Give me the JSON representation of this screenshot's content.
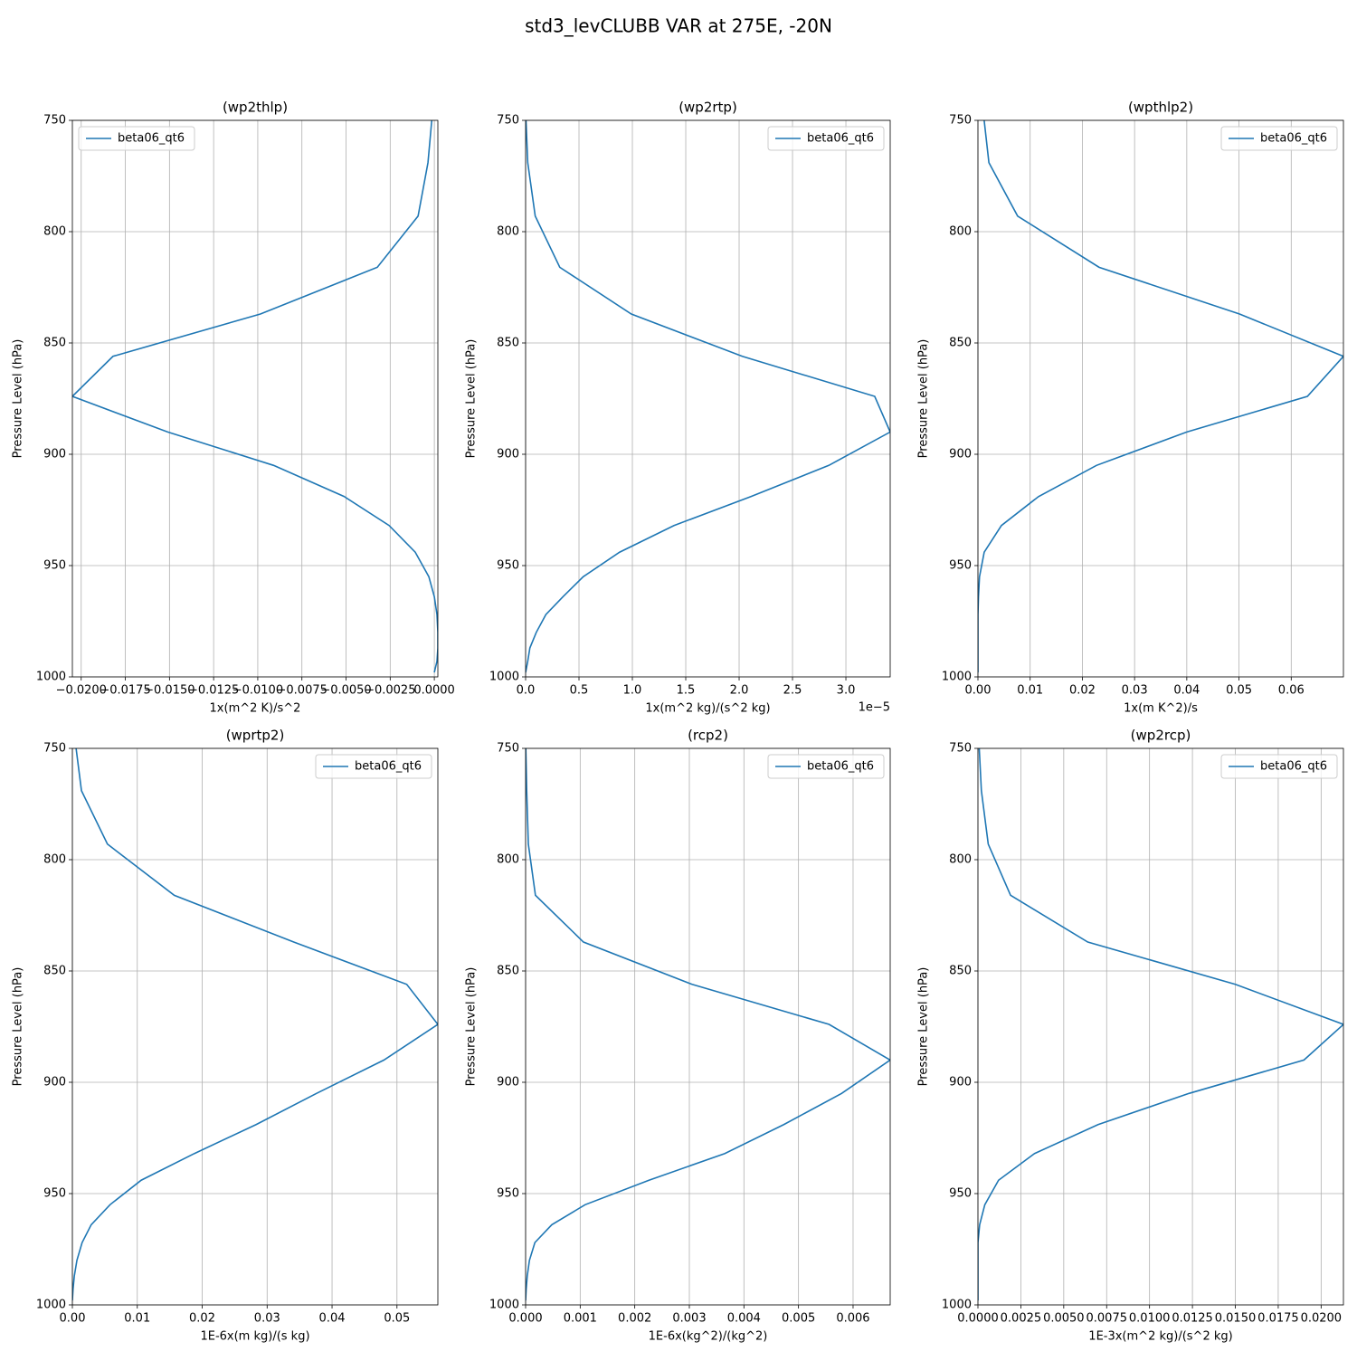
{
  "title": "std3_levCLUBB VAR at 275E, -20N",
  "chart_data": [
    {
      "type": "line",
      "title": "(wp2thlp)",
      "xlabel": "1x(m^2 K)/s^2",
      "ylabel": "Pressure Level (hPa)",
      "y": [
        746,
        769,
        793,
        816,
        837,
        856,
        874,
        890,
        905,
        919,
        932,
        944,
        955,
        964,
        972,
        980,
        987,
        993,
        998
      ],
      "series": [
        {
          "name": "beta06_qt6",
          "color": "#1f77b4",
          "values": [
            -0.0001,
            -0.00036,
            -0.00092,
            -0.00323,
            -0.00985,
            -0.0182,
            -0.0205,
            -0.0151,
            -0.0091,
            -0.0051,
            -0.00256,
            -0.00108,
            -0.00031,
            0,
            0.00015,
            0.0002,
            0.0002,
            0.00015,
            0
          ]
        }
      ],
      "xlim": [
        -0.0205,
        0.0002
      ],
      "ylim": [
        1000,
        750
      ],
      "xticks": [
        {
          "value": -0.02,
          "label": "−0.0200"
        },
        {
          "value": -0.0175,
          "label": "−0.0175"
        },
        {
          "value": -0.015,
          "label": "−0.0150"
        },
        {
          "value": -0.0125,
          "label": "−0.0125"
        },
        {
          "value": -0.01,
          "label": "−0.0100"
        },
        {
          "value": -0.0075,
          "label": "−0.0075"
        },
        {
          "value": -0.005,
          "label": "−0.0050"
        },
        {
          "value": -0.0025,
          "label": "−0.0025"
        },
        {
          "value": 0,
          "label": "0.0000"
        }
      ],
      "yticks": [
        750,
        800,
        850,
        900,
        950,
        1000
      ],
      "grid": true,
      "legend": "upper left"
    },
    {
      "type": "line",
      "title": "(wp2rtp)",
      "xlabel": "1x(m^2 kg)/(s^2 kg)",
      "ylabel": "Pressure Level (hPa)",
      "x_offset_label": "1e−5",
      "y": [
        746,
        769,
        793,
        816,
        837,
        856,
        874,
        890,
        905,
        919,
        932,
        944,
        955,
        964,
        972,
        980,
        987,
        993,
        998
      ],
      "series": [
        {
          "name": "beta06_qt6",
          "color": "#1f77b4",
          "values": [
            0,
            0.02,
            0.09,
            0.32,
            0.99,
            2.03,
            3.27,
            3.415,
            2.84,
            2.11,
            1.39,
            0.88,
            0.54,
            0.35,
            0.19,
            0.1,
            0.04,
            0.02,
            0
          ]
        }
      ],
      "xlim": [
        0,
        3.415
      ],
      "ylim": [
        1000,
        750
      ],
      "xticks": [
        {
          "value": 0,
          "label": "0.0"
        },
        0.5,
        {
          "value": 1,
          "label": "1.0"
        },
        1.5,
        {
          "value": 2,
          "label": "2.0"
        },
        2.5,
        {
          "value": 3,
          "label": "3.0"
        }
      ],
      "yticks": [
        750,
        800,
        850,
        900,
        950,
        1000
      ],
      "grid": true,
      "legend": "upper right"
    },
    {
      "type": "line",
      "title": "(wpthlp2)",
      "xlabel": "1x(m K^2)/s",
      "ylabel": "Pressure Level (hPa)",
      "y": [
        746,
        769,
        793,
        816,
        837,
        856,
        874,
        890,
        905,
        919,
        932,
        944,
        955,
        964,
        972,
        980,
        987,
        993,
        998
      ],
      "series": [
        {
          "name": "beta06_qt6",
          "color": "#1f77b4",
          "values": [
            0.001,
            0.0021,
            0.0076,
            0.0232,
            0.0501,
            0.07,
            0.0631,
            0.04,
            0.0227,
            0.0116,
            0.0045,
            0.0012,
            0.0003,
            0.0001,
            0,
            0,
            0,
            0,
            0
          ]
        }
      ],
      "xlim": [
        0,
        0.07
      ],
      "ylim": [
        1000,
        750
      ],
      "xticks": [
        {
          "value": 0,
          "label": "0.00"
        },
        0.01,
        0.02,
        0.03,
        0.04,
        0.05,
        0.06
      ],
      "yticks": [
        750,
        800,
        850,
        900,
        950,
        1000
      ],
      "grid": true,
      "legend": "upper right"
    },
    {
      "type": "line",
      "title": "(wprtp2)",
      "xlabel": "1E-6x(m kg)/(s kg)",
      "ylabel": "Pressure Level (hPa)",
      "y": [
        746,
        769,
        793,
        816,
        837,
        856,
        874,
        890,
        905,
        919,
        932,
        944,
        955,
        964,
        972,
        980,
        987,
        993,
        998
      ],
      "series": [
        {
          "name": "beta06_qt6",
          "color": "#1f77b4",
          "values": [
            0.0004,
            0.0014,
            0.0054,
            0.0157,
            0.0341,
            0.0515,
            0.0563,
            0.048,
            0.0376,
            0.0283,
            0.0188,
            0.0106,
            0.0058,
            0.0029,
            0.0015,
            0.0007,
            0.0003,
            0.0001,
            0
          ]
        }
      ],
      "xlim": [
        0,
        0.0563
      ],
      "ylim": [
        1000,
        750
      ],
      "xticks": [
        {
          "value": 0,
          "label": "0.00"
        },
        0.01,
        0.02,
        0.03,
        0.04,
        0.05
      ],
      "yticks": [
        750,
        800,
        850,
        900,
        950,
        1000
      ],
      "grid": true,
      "legend": "upper right"
    },
    {
      "type": "line",
      "title": "(rcp2)",
      "xlabel": "1E-6x(kg^2)/(kg^2)",
      "ylabel": "Pressure Level (hPa)",
      "y": [
        746,
        769,
        793,
        816,
        837,
        856,
        874,
        890,
        905,
        919,
        932,
        944,
        955,
        964,
        972,
        980,
        987,
        993,
        998
      ],
      "series": [
        {
          "name": "beta06_qt6",
          "color": "#1f77b4",
          "values": [
            0,
            2e-05,
            5e-05,
            0.00018,
            0.00106,
            0.00305,
            0.00556,
            0.00668,
            0.00579,
            0.00473,
            0.00365,
            0.00226,
            0.00109,
            0.00048,
            0.00017,
            7e-05,
            3e-05,
            1e-05,
            0
          ]
        }
      ],
      "xlim": [
        0,
        0.00668
      ],
      "ylim": [
        1000,
        750
      ],
      "xticks": [
        {
          "value": 0,
          "label": "0.000"
        },
        0.001,
        0.002,
        0.003,
        0.004,
        0.005,
        0.006
      ],
      "yticks": [
        750,
        800,
        850,
        900,
        950,
        1000
      ],
      "grid": true,
      "legend": "upper right"
    },
    {
      "type": "line",
      "title": "(wp2rcp)",
      "xlabel": "1E-3x(m^2 kg)/(s^2 kg)",
      "ylabel": "Pressure Level (hPa)",
      "y": [
        746,
        769,
        793,
        816,
        837,
        856,
        874,
        890,
        905,
        919,
        932,
        944,
        955,
        964,
        972,
        980,
        987,
        993,
        998
      ],
      "series": [
        {
          "name": "beta06_qt6",
          "color": "#1f77b4",
          "values": [
            5e-05,
            0.0002,
            0.0006,
            0.0019,
            0.0064,
            0.015,
            0.0213,
            0.019,
            0.0123,
            0.007,
            0.0033,
            0.0012,
            0.0004,
            0.0001,
            0,
            0,
            0,
            0,
            0
          ]
        }
      ],
      "xlim": [
        0,
        0.0213
      ],
      "ylim": [
        1000,
        750
      ],
      "xticks": [
        {
          "value": 0,
          "label": "0.0000"
        },
        {
          "value": 0.0025,
          "label": "0.0025"
        },
        {
          "value": 0.005,
          "label": "0.0050"
        },
        {
          "value": 0.0075,
          "label": "0.0075"
        },
        {
          "value": 0.01,
          "label": "0.0100"
        },
        {
          "value": 0.0125,
          "label": "0.0125"
        },
        {
          "value": 0.015,
          "label": "0.0150"
        },
        {
          "value": 0.0175,
          "label": "0.0175"
        },
        {
          "value": 0.02,
          "label": "0.0200"
        }
      ],
      "yticks": [
        750,
        800,
        850,
        900,
        950,
        1000
      ],
      "grid": true,
      "legend": "upper right"
    }
  ]
}
